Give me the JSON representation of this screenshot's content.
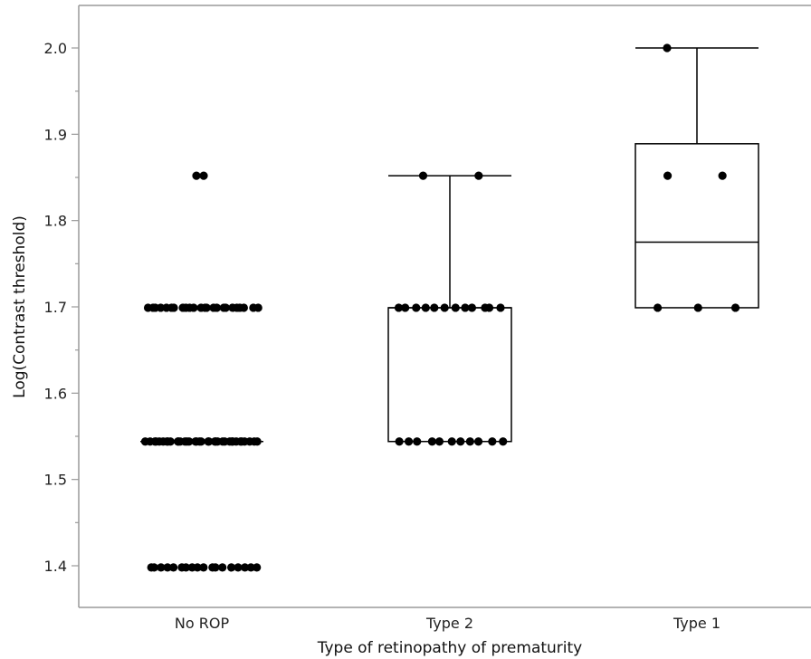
{
  "chart_data": {
    "type": "box",
    "xlabel": "Type of retinopathy of prematurity",
    "ylabel": "Log(Contrast threshold)",
    "ylim": [
      1.325,
      2.05
    ],
    "y_ticks": [
      1.4,
      1.5,
      1.6,
      1.7,
      1.8,
      1.9,
      2.0
    ],
    "y_tick_labels": [
      "1.4",
      "1.5",
      "1.6",
      "1.7",
      "1.8",
      "1.9",
      "2.0"
    ],
    "categories": [
      "No ROP",
      "Type 2",
      "Type 1"
    ],
    "boxes": [
      {
        "category": "No ROP",
        "min": 1.544,
        "q1": 1.544,
        "median": 1.544,
        "q3": 1.544,
        "max": 1.544,
        "points": [
          {
            "y": 1.852,
            "n": 2
          },
          {
            "y": 1.699,
            "n": 24
          },
          {
            "y": 1.544,
            "n": 36
          },
          {
            "y": 1.398,
            "n": 18
          }
        ]
      },
      {
        "category": "Type 2",
        "min": 1.544,
        "q1": 1.544,
        "median": 1.699,
        "q3": 1.699,
        "max": 1.852,
        "points": [
          {
            "y": 1.852,
            "n": 2
          },
          {
            "y": 1.699,
            "n": 12
          },
          {
            "y": 1.544,
            "n": 11
          }
        ]
      },
      {
        "category": "Type 1",
        "min": 1.699,
        "q1": 1.699,
        "median": 1.775,
        "q3": 1.889,
        "max": 2.0,
        "points": [
          {
            "y": 2.0,
            "n": 1
          },
          {
            "y": 1.852,
            "n": 2
          },
          {
            "y": 1.699,
            "n": 3
          }
        ]
      }
    ]
  }
}
